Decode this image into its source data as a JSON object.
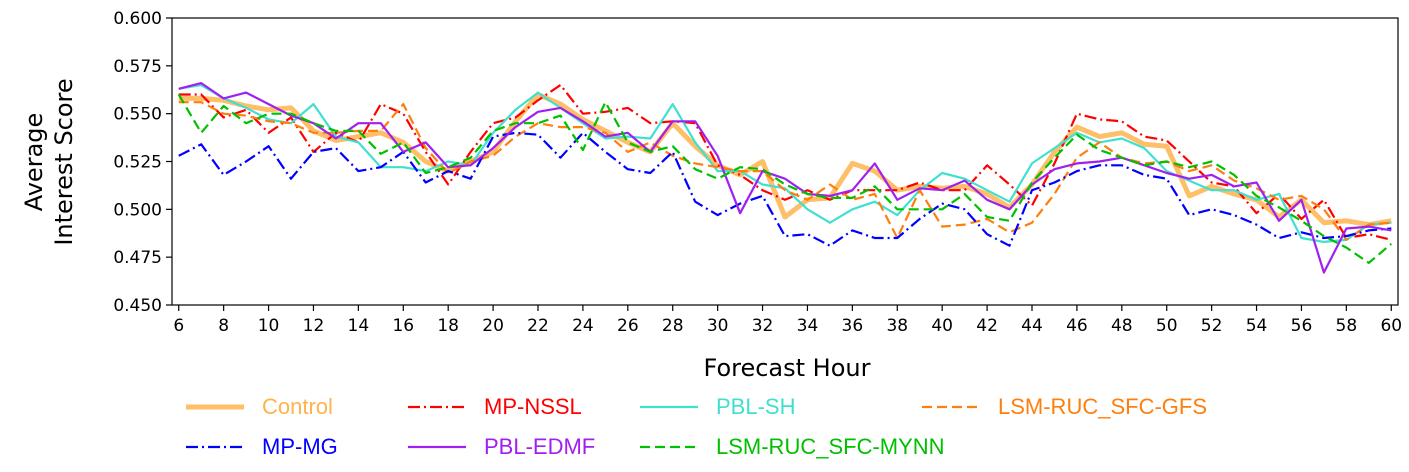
{
  "chart_data": {
    "type": "line",
    "xlabel": "Forecast Hour",
    "ylabel_lines": [
      "Average",
      "Interest Score"
    ],
    "xlim": [
      5.7,
      60.3
    ],
    "ylim": [
      0.45,
      0.6
    ],
    "xticks": [
      6,
      8,
      10,
      12,
      14,
      16,
      18,
      20,
      22,
      24,
      26,
      28,
      30,
      32,
      34,
      36,
      38,
      40,
      42,
      44,
      46,
      48,
      50,
      52,
      54,
      56,
      58,
      60
    ],
    "yticks": [
      "0.450",
      "0.475",
      "0.500",
      "0.525",
      "0.550",
      "0.575",
      "0.600"
    ],
    "x": [
      6,
      7,
      8,
      9,
      10,
      11,
      12,
      13,
      14,
      15,
      16,
      17,
      18,
      19,
      20,
      21,
      22,
      23,
      24,
      25,
      26,
      27,
      28,
      29,
      30,
      31,
      32,
      33,
      34,
      35,
      36,
      37,
      38,
      39,
      40,
      41,
      42,
      43,
      44,
      45,
      46,
      47,
      48,
      49,
      50,
      51,
      52,
      53,
      54,
      55,
      56,
      57,
      58,
      59,
      60
    ],
    "series": [
      {
        "name": "Control",
        "color": "#ffb34d",
        "dash": "solid",
        "width": 5,
        "opacity": 0.85,
        "values": [
          0.558,
          0.558,
          0.557,
          0.554,
          0.552,
          0.553,
          0.541,
          0.536,
          0.538,
          0.54,
          0.535,
          0.525,
          0.52,
          0.525,
          0.53,
          0.546,
          0.56,
          0.555,
          0.547,
          0.541,
          0.535,
          0.53,
          0.545,
          0.533,
          0.523,
          0.518,
          0.525,
          0.496,
          0.505,
          0.506,
          0.524,
          0.52,
          0.51,
          0.512,
          0.511,
          0.512,
          0.508,
          0.501,
          0.513,
          0.53,
          0.543,
          0.538,
          0.54,
          0.534,
          0.533,
          0.507,
          0.512,
          0.508,
          0.505,
          0.496,
          0.505,
          0.493,
          0.494,
          0.492,
          0.494
        ]
      },
      {
        "name": "MP-NSSL",
        "color": "#ff0000",
        "dash": "12,4,2,4",
        "width": 2.2,
        "opacity": 1,
        "values": [
          0.56,
          0.56,
          0.548,
          0.552,
          0.54,
          0.548,
          0.53,
          0.54,
          0.535,
          0.555,
          0.55,
          0.53,
          0.513,
          0.53,
          0.545,
          0.548,
          0.557,
          0.565,
          0.55,
          0.551,
          0.553,
          0.545,
          0.546,
          0.545,
          0.523,
          0.518,
          0.51,
          0.505,
          0.51,
          0.505,
          0.51,
          0.51,
          0.51,
          0.514,
          0.51,
          0.51,
          0.523,
          0.513,
          0.502,
          0.524,
          0.55,
          0.547,
          0.546,
          0.538,
          0.536,
          0.525,
          0.514,
          0.512,
          0.498,
          0.508,
          0.495,
          0.505,
          0.485,
          0.487,
          0.484
        ]
      },
      {
        "name": "PBL-SH",
        "color": "#40e0d0",
        "dash": "solid",
        "width": 2.2,
        "opacity": 1,
        "values": [
          0.563,
          0.565,
          0.558,
          0.553,
          0.547,
          0.545,
          0.555,
          0.538,
          0.535,
          0.522,
          0.522,
          0.52,
          0.525,
          0.523,
          0.54,
          0.552,
          0.561,
          0.553,
          0.545,
          0.537,
          0.538,
          0.537,
          0.555,
          0.535,
          0.52,
          0.52,
          0.513,
          0.511,
          0.5,
          0.493,
          0.5,
          0.504,
          0.497,
          0.51,
          0.519,
          0.516,
          0.51,
          0.504,
          0.524,
          0.532,
          0.54,
          0.535,
          0.537,
          0.532,
          0.52,
          0.515,
          0.51,
          0.51,
          0.505,
          0.508,
          0.485,
          0.483,
          0.484,
          0.492,
          0.493
        ]
      },
      {
        "name": "LSM-RUC_SFC-GFS",
        "color": "#ff7f0e",
        "dash": "10,5",
        "width": 2.2,
        "opacity": 1,
        "values": [
          0.556,
          0.556,
          0.55,
          0.549,
          0.546,
          0.545,
          0.54,
          0.54,
          0.541,
          0.541,
          0.555,
          0.532,
          0.519,
          0.525,
          0.528,
          0.538,
          0.545,
          0.543,
          0.543,
          0.54,
          0.53,
          0.535,
          0.528,
          0.524,
          0.522,
          0.52,
          0.52,
          0.51,
          0.505,
          0.513,
          0.505,
          0.508,
          0.485,
          0.51,
          0.491,
          0.492,
          0.495,
          0.488,
          0.493,
          0.508,
          0.527,
          0.535,
          0.527,
          0.524,
          0.525,
          0.52,
          0.523,
          0.515,
          0.511,
          0.505,
          0.507,
          0.5,
          0.484,
          0.492,
          0.493
        ]
      },
      {
        "name": "MP-MG",
        "color": "#0000ff",
        "dash": "12,4,2,4",
        "width": 2.2,
        "opacity": 1,
        "values": [
          0.528,
          0.534,
          0.518,
          0.525,
          0.533,
          0.516,
          0.53,
          0.532,
          0.52,
          0.522,
          0.53,
          0.514,
          0.52,
          0.516,
          0.538,
          0.54,
          0.539,
          0.527,
          0.54,
          0.53,
          0.521,
          0.519,
          0.53,
          0.504,
          0.497,
          0.503,
          0.507,
          0.486,
          0.487,
          0.481,
          0.489,
          0.485,
          0.485,
          0.495,
          0.503,
          0.5,
          0.487,
          0.481,
          0.51,
          0.514,
          0.52,
          0.523,
          0.523,
          0.518,
          0.516,
          0.497,
          0.5,
          0.497,
          0.492,
          0.485,
          0.488,
          0.485,
          0.486,
          0.489,
          0.49
        ]
      },
      {
        "name": "PBL-EDMF",
        "color": "#a020f0",
        "dash": "solid",
        "width": 2.2,
        "opacity": 1,
        "values": [
          0.563,
          0.566,
          0.558,
          0.561,
          0.555,
          0.549,
          0.545,
          0.537,
          0.545,
          0.545,
          0.53,
          0.535,
          0.522,
          0.523,
          0.532,
          0.543,
          0.551,
          0.553,
          0.546,
          0.538,
          0.54,
          0.53,
          0.546,
          0.546,
          0.528,
          0.498,
          0.52,
          0.516,
          0.508,
          0.507,
          0.51,
          0.524,
          0.505,
          0.511,
          0.51,
          0.515,
          0.505,
          0.5,
          0.513,
          0.521,
          0.524,
          0.525,
          0.527,
          0.523,
          0.519,
          0.516,
          0.518,
          0.512,
          0.514,
          0.494,
          0.505,
          0.467,
          0.49,
          0.491,
          0.489
        ]
      },
      {
        "name": "LSM-RUC_SFC-MYNN",
        "color": "#00c000",
        "dash": "10,5",
        "width": 2.2,
        "opacity": 1,
        "values": [
          0.56,
          0.54,
          0.554,
          0.545,
          0.55,
          0.55,
          0.545,
          0.541,
          0.541,
          0.529,
          0.535,
          0.519,
          0.522,
          0.527,
          0.541,
          0.545,
          0.545,
          0.549,
          0.531,
          0.556,
          0.535,
          0.53,
          0.533,
          0.521,
          0.516,
          0.522,
          0.521,
          0.513,
          0.508,
          0.506,
          0.506,
          0.512,
          0.5,
          0.5,
          0.5,
          0.508,
          0.496,
          0.494,
          0.514,
          0.527,
          0.539,
          0.531,
          0.527,
          0.523,
          0.525,
          0.522,
          0.525,
          0.518,
          0.507,
          0.501,
          0.494,
          0.486,
          0.48,
          0.472,
          0.482
        ]
      }
    ],
    "legend": {
      "placement": "bottom",
      "columns": [
        [
          "Control",
          "MP-MG"
        ],
        [
          "MP-NSSL",
          "PBL-EDMF"
        ],
        [
          "PBL-SH",
          "LSM-RUC_SFC-MYNN"
        ],
        [
          "LSM-RUC_SFC-GFS"
        ]
      ]
    }
  }
}
